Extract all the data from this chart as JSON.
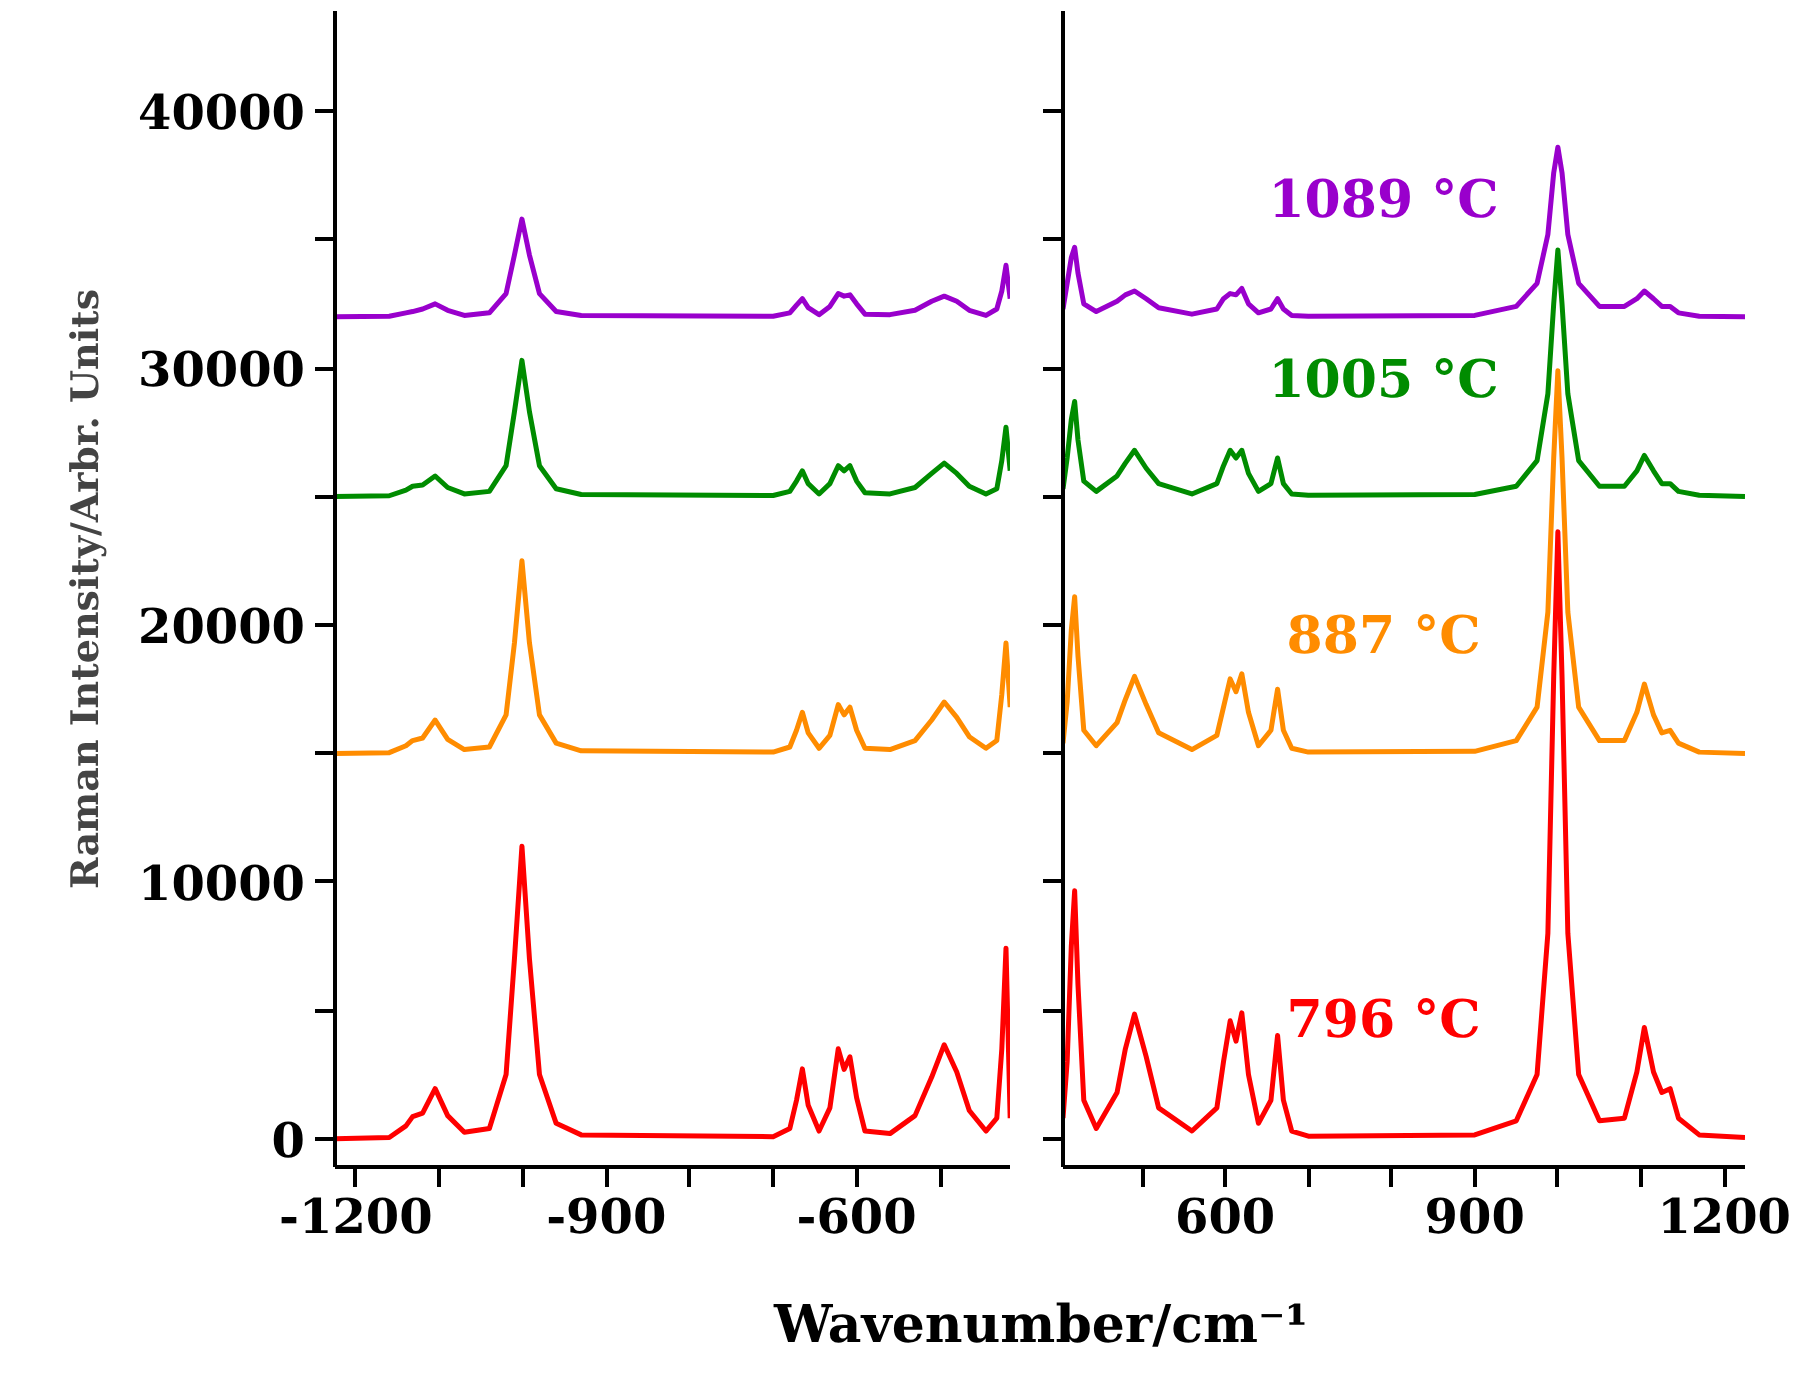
{
  "chart_data": [
    {
      "type": "line",
      "ylabel": "Raman Intensity/Arbr. Units",
      "xlabel": "Wavenumber/cm⁻¹",
      "xlim": [
        -1225,
        -415
      ],
      "ylim": [
        -1100,
        43900
      ],
      "xticks": [
        -1200,
        {
          "value": -1100,
          "label": null
        },
        {
          "value": -1000,
          "label": null
        },
        -900,
        {
          "value": -800,
          "label": null
        },
        {
          "value": -700,
          "label": null
        },
        -600,
        {
          "value": -500,
          "label": null
        }
      ],
      "yticks": [
        0,
        {
          "value": 5000,
          "label": null
        },
        10000,
        {
          "value": 15000,
          "label": null
        },
        20000,
        {
          "value": 25000,
          "label": null
        },
        30000,
        {
          "value": 35000,
          "label": null
        },
        40000
      ],
      "x": [
        -1225,
        -1160,
        -1140,
        -1132,
        -1120,
        -1105,
        -1090,
        -1070,
        -1040,
        -1020,
        -1010,
        -1001,
        -992,
        -980,
        -960,
        -930,
        -700,
        -680,
        -672,
        -665,
        -658,
        -645,
        -632,
        -622,
        -615,
        -608,
        -600,
        -590,
        -560,
        -530,
        -510,
        -495,
        -480,
        -465,
        -445,
        -432,
        -426,
        -421,
        -416
      ],
      "series": [
        {
          "color": "#ff0000",
          "values": [
            0,
            50,
            500,
            860,
            1000,
            1950,
            900,
            250,
            400,
            2500,
            7000,
            11390,
            7000,
            2500,
            600,
            150,
            80,
            400,
            1500,
            2720,
            1300,
            300,
            1200,
            3500,
            2700,
            3190,
            1600,
            300,
            200,
            900,
            2400,
            3660,
            2600,
            1100,
            300,
            800,
            3500,
            7420,
            800
          ]
        },
        {
          "color": "#ff8c00",
          "values": [
            15000,
            15030,
            15300,
            15500,
            15600,
            16300,
            15550,
            15150,
            15250,
            16500,
            19300,
            22500,
            19300,
            16500,
            15400,
            15100,
            15050,
            15250,
            15900,
            16600,
            15800,
            15200,
            15700,
            16900,
            16500,
            16800,
            15900,
            15200,
            15150,
            15500,
            16300,
            17000,
            16400,
            15650,
            15200,
            15500,
            17300,
            19300,
            16800
          ]
        },
        {
          "color": "#008c00",
          "values": [
            25000,
            25030,
            25250,
            25400,
            25450,
            25800,
            25350,
            25100,
            25200,
            26200,
            28300,
            30300,
            28300,
            26200,
            25300,
            25080,
            25040,
            25200,
            25600,
            26000,
            25500,
            25100,
            25500,
            26200,
            26000,
            26200,
            25600,
            25150,
            25100,
            25350,
            25900,
            26300,
            25900,
            25400,
            25100,
            25300,
            26400,
            27700,
            26000
          ]
        },
        {
          "color": "#9900cc",
          "values": [
            32000,
            32020,
            32150,
            32200,
            32300,
            32500,
            32250,
            32050,
            32150,
            32900,
            34400,
            35800,
            34400,
            32900,
            32200,
            32050,
            32020,
            32150,
            32450,
            32700,
            32350,
            32080,
            32400,
            32900,
            32800,
            32850,
            32500,
            32100,
            32080,
            32250,
            32600,
            32800,
            32600,
            32250,
            32050,
            32300,
            33000,
            34000,
            32700
          ]
        }
      ]
    },
    {
      "type": "line",
      "tick_labels": "x",
      "xlim": [
        405,
        1225
      ],
      "ylim": [
        -1100,
        43900
      ],
      "yticks": [
        0,
        {
          "value": 5000,
          "label": null
        },
        10000,
        {
          "value": 15000,
          "label": null
        },
        20000,
        {
          "value": 25000,
          "label": null
        },
        30000,
        {
          "value": 35000,
          "label": null
        },
        40000
      ],
      "xticks": [
        {
          "value": 500,
          "label": null
        },
        600,
        {
          "value": 700,
          "label": null
        },
        {
          "value": 800,
          "label": null
        },
        900,
        {
          "value": 1000,
          "label": null
        },
        {
          "value": 1100,
          "label": null
        },
        1200
      ],
      "x": [
        405,
        410,
        415,
        419,
        423,
        430,
        445,
        470,
        480,
        491,
        505,
        520,
        560,
        590,
        598,
        606,
        613,
        620,
        628,
        640,
        655,
        663,
        670,
        680,
        700,
        900,
        950,
        975,
        988,
        995,
        1000,
        1005,
        1012,
        1025,
        1050,
        1080,
        1095,
        1104,
        1115,
        1125,
        1135,
        1145,
        1170,
        1225
      ],
      "series": [
        {
          "name": "796 °C",
          "color": "#ff0000",
          "values": [
            800,
            3000,
            7500,
            9650,
            6000,
            1500,
            400,
            1800,
            3500,
            4850,
            3200,
            1200,
            300,
            1200,
            3000,
            4590,
            3800,
            4900,
            2500,
            600,
            1500,
            4020,
            1500,
            300,
            100,
            150,
            700,
            2500,
            8000,
            18000,
            23630,
            18000,
            8000,
            2500,
            700,
            800,
            2600,
            4330,
            2600,
            1800,
            1950,
            800,
            150,
            50
          ]
        },
        {
          "name": "887 °C",
          "color": "#ff8c00",
          "values": [
            15400,
            17000,
            19800,
            21100,
            18800,
            15900,
            15300,
            16200,
            17100,
            18000,
            16900,
            15800,
            15150,
            15700,
            16800,
            17900,
            17400,
            18100,
            16600,
            15300,
            15900,
            17500,
            15900,
            15200,
            15050,
            15080,
            15500,
            16800,
            20500,
            26500,
            29900,
            26500,
            20500,
            16800,
            15500,
            15500,
            16600,
            17700,
            16500,
            15800,
            15900,
            15400,
            15050,
            15000
          ]
        },
        {
          "name": "1005 °C",
          "color": "#008c00",
          "values": [
            25300,
            26500,
            28000,
            28700,
            27200,
            25600,
            25200,
            25800,
            26300,
            26800,
            26100,
            25500,
            25100,
            25500,
            26200,
            26800,
            26500,
            26800,
            25900,
            25200,
            25500,
            26500,
            25500,
            25100,
            25050,
            25080,
            25400,
            26400,
            29000,
            32500,
            34600,
            32500,
            29000,
            26400,
            25400,
            25400,
            26000,
            26600,
            26000,
            25500,
            25500,
            25200,
            25050,
            25000
          ]
        },
        {
          "name": "1089 °C",
          "color": "#9900cc",
          "values": [
            32300,
            33300,
            34300,
            34700,
            33700,
            32500,
            32200,
            32600,
            32850,
            33000,
            32700,
            32350,
            32100,
            32300,
            32700,
            32900,
            32850,
            33100,
            32500,
            32150,
            32300,
            32700,
            32300,
            32050,
            32020,
            32050,
            32400,
            33300,
            35200,
            37600,
            38600,
            37600,
            35200,
            33300,
            32400,
            32400,
            32700,
            33000,
            32700,
            32400,
            32400,
            32150,
            32020,
            32000
          ]
        }
      ]
    }
  ]
}
